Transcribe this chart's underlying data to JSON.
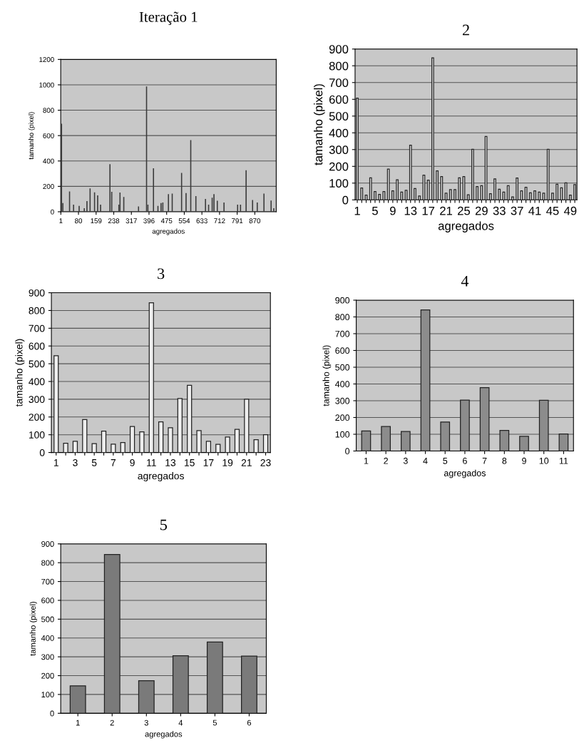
{
  "chart_data": [
    {
      "type": "bar",
      "title": "Iteração 1",
      "xlabel": "agregados",
      "ylabel": "tamanho (pixel)",
      "color": "#3a3a3a",
      "grid": "y",
      "x": [
        4,
        10,
        40,
        58,
        83,
        106,
        118,
        132,
        152,
        166,
        179,
        221,
        229,
        261,
        266,
        283,
        349,
        385,
        391,
        416,
        436,
        450,
        458,
        483,
        500,
        542,
        562,
        583,
        606,
        649,
        663,
        679,
        687,
        702,
        732,
        793,
        806,
        831,
        860,
        881,
        911,
        943,
        955
      ],
      "values": [
        690,
        65,
        157,
        52,
        43,
        24,
        80,
        181,
        150,
        126,
        52,
        372,
        154,
        52,
        148,
        113,
        39,
        983,
        52,
        339,
        43,
        65,
        70,
        135,
        139,
        302,
        144,
        561,
        120,
        98,
        52,
        107,
        135,
        83,
        70,
        52,
        52,
        324,
        89,
        70,
        139,
        85,
        24
      ],
      "xlim": [
        0.5,
        966
      ],
      "xticks": [
        1,
        80,
        159,
        238,
        317,
        396,
        475,
        554,
        633,
        712,
        791,
        870
      ],
      "ylim": [
        0,
        1200
      ],
      "yticks": [
        0,
        200,
        400,
        600,
        800,
        1000,
        1200
      ]
    },
    {
      "type": "bar",
      "title": "2",
      "xlabel": "agregados",
      "ylabel": "tamanho (pixel)",
      "color": "#eeeeee",
      "grid": "y",
      "categories": [
        "1",
        null,
        null,
        null,
        "5",
        null,
        null,
        null,
        "9",
        null,
        null,
        null,
        "13",
        null,
        null,
        null,
        "17",
        null,
        null,
        null,
        "21",
        null,
        null,
        null,
        "25",
        null,
        null,
        null,
        "29",
        null,
        null,
        null,
        "33",
        null,
        null,
        null,
        "37",
        null,
        null,
        null,
        "41",
        null,
        null,
        null,
        "45",
        null,
        null,
        null,
        "49",
        null
      ],
      "values": [
        607,
        71,
        28,
        132,
        50,
        33,
        50,
        184,
        54,
        120,
        47,
        57,
        326,
        68,
        23,
        147,
        118,
        847,
        173,
        139,
        40,
        61,
        61,
        132,
        139,
        31,
        302,
        79,
        85,
        378,
        37,
        125,
        64,
        47,
        85,
        18,
        130,
        54,
        75,
        42,
        54,
        47,
        40,
        302,
        40,
        93,
        72,
        102,
        28,
        91
      ],
      "ylim": [
        0,
        900
      ],
      "yticks": [
        0,
        100,
        200,
        300,
        400,
        500,
        600,
        700,
        800,
        900
      ]
    },
    {
      "type": "bar",
      "title": "3",
      "xlabel": "agregados",
      "ylabel": "tamanho (pixel)",
      "color": "#eeeeee",
      "grid": "y",
      "categories": [
        "1",
        null,
        "3",
        null,
        "5",
        null,
        "7",
        null,
        "9",
        null,
        "11",
        null,
        "13",
        null,
        "15",
        null,
        "17",
        null,
        "19",
        null,
        "21",
        null,
        "23"
      ],
      "values": [
        545,
        52,
        63,
        186,
        50,
        120,
        47,
        56,
        146,
        116,
        843,
        173,
        139,
        304,
        378,
        123,
        63,
        46,
        87,
        130,
        300,
        72,
        100
      ],
      "ylim": [
        0,
        900
      ],
      "yticks": [
        0,
        100,
        200,
        300,
        400,
        500,
        600,
        700,
        800,
        900
      ]
    },
    {
      "type": "bar",
      "title": "4",
      "xlabel": "agregados",
      "ylabel": "tamanho (pixel)",
      "color": "#8c8c8c",
      "grid": "y",
      "categories": [
        "1",
        "2",
        "3",
        "4",
        "5",
        "6",
        "7",
        "8",
        "9",
        "10",
        "11"
      ],
      "values": [
        120,
        146,
        116,
        842,
        173,
        304,
        378,
        123,
        88,
        303,
        102
      ],
      "ylim": [
        0,
        900
      ],
      "yticks": [
        0,
        100,
        200,
        300,
        400,
        500,
        600,
        700,
        800,
        900
      ]
    },
    {
      "type": "bar",
      "title": "5",
      "xlabel": "agregados",
      "ylabel": "tamanho (pixel)",
      "color": "#7a7a7a",
      "grid": "y",
      "categories": [
        "1",
        "2",
        "3",
        "4",
        "5",
        "6"
      ],
      "values": [
        146,
        844,
        173,
        306,
        379,
        304
      ],
      "ylim": [
        0,
        900
      ],
      "yticks": [
        0,
        100,
        200,
        300,
        400,
        500,
        600,
        700,
        800,
        900
      ]
    }
  ]
}
